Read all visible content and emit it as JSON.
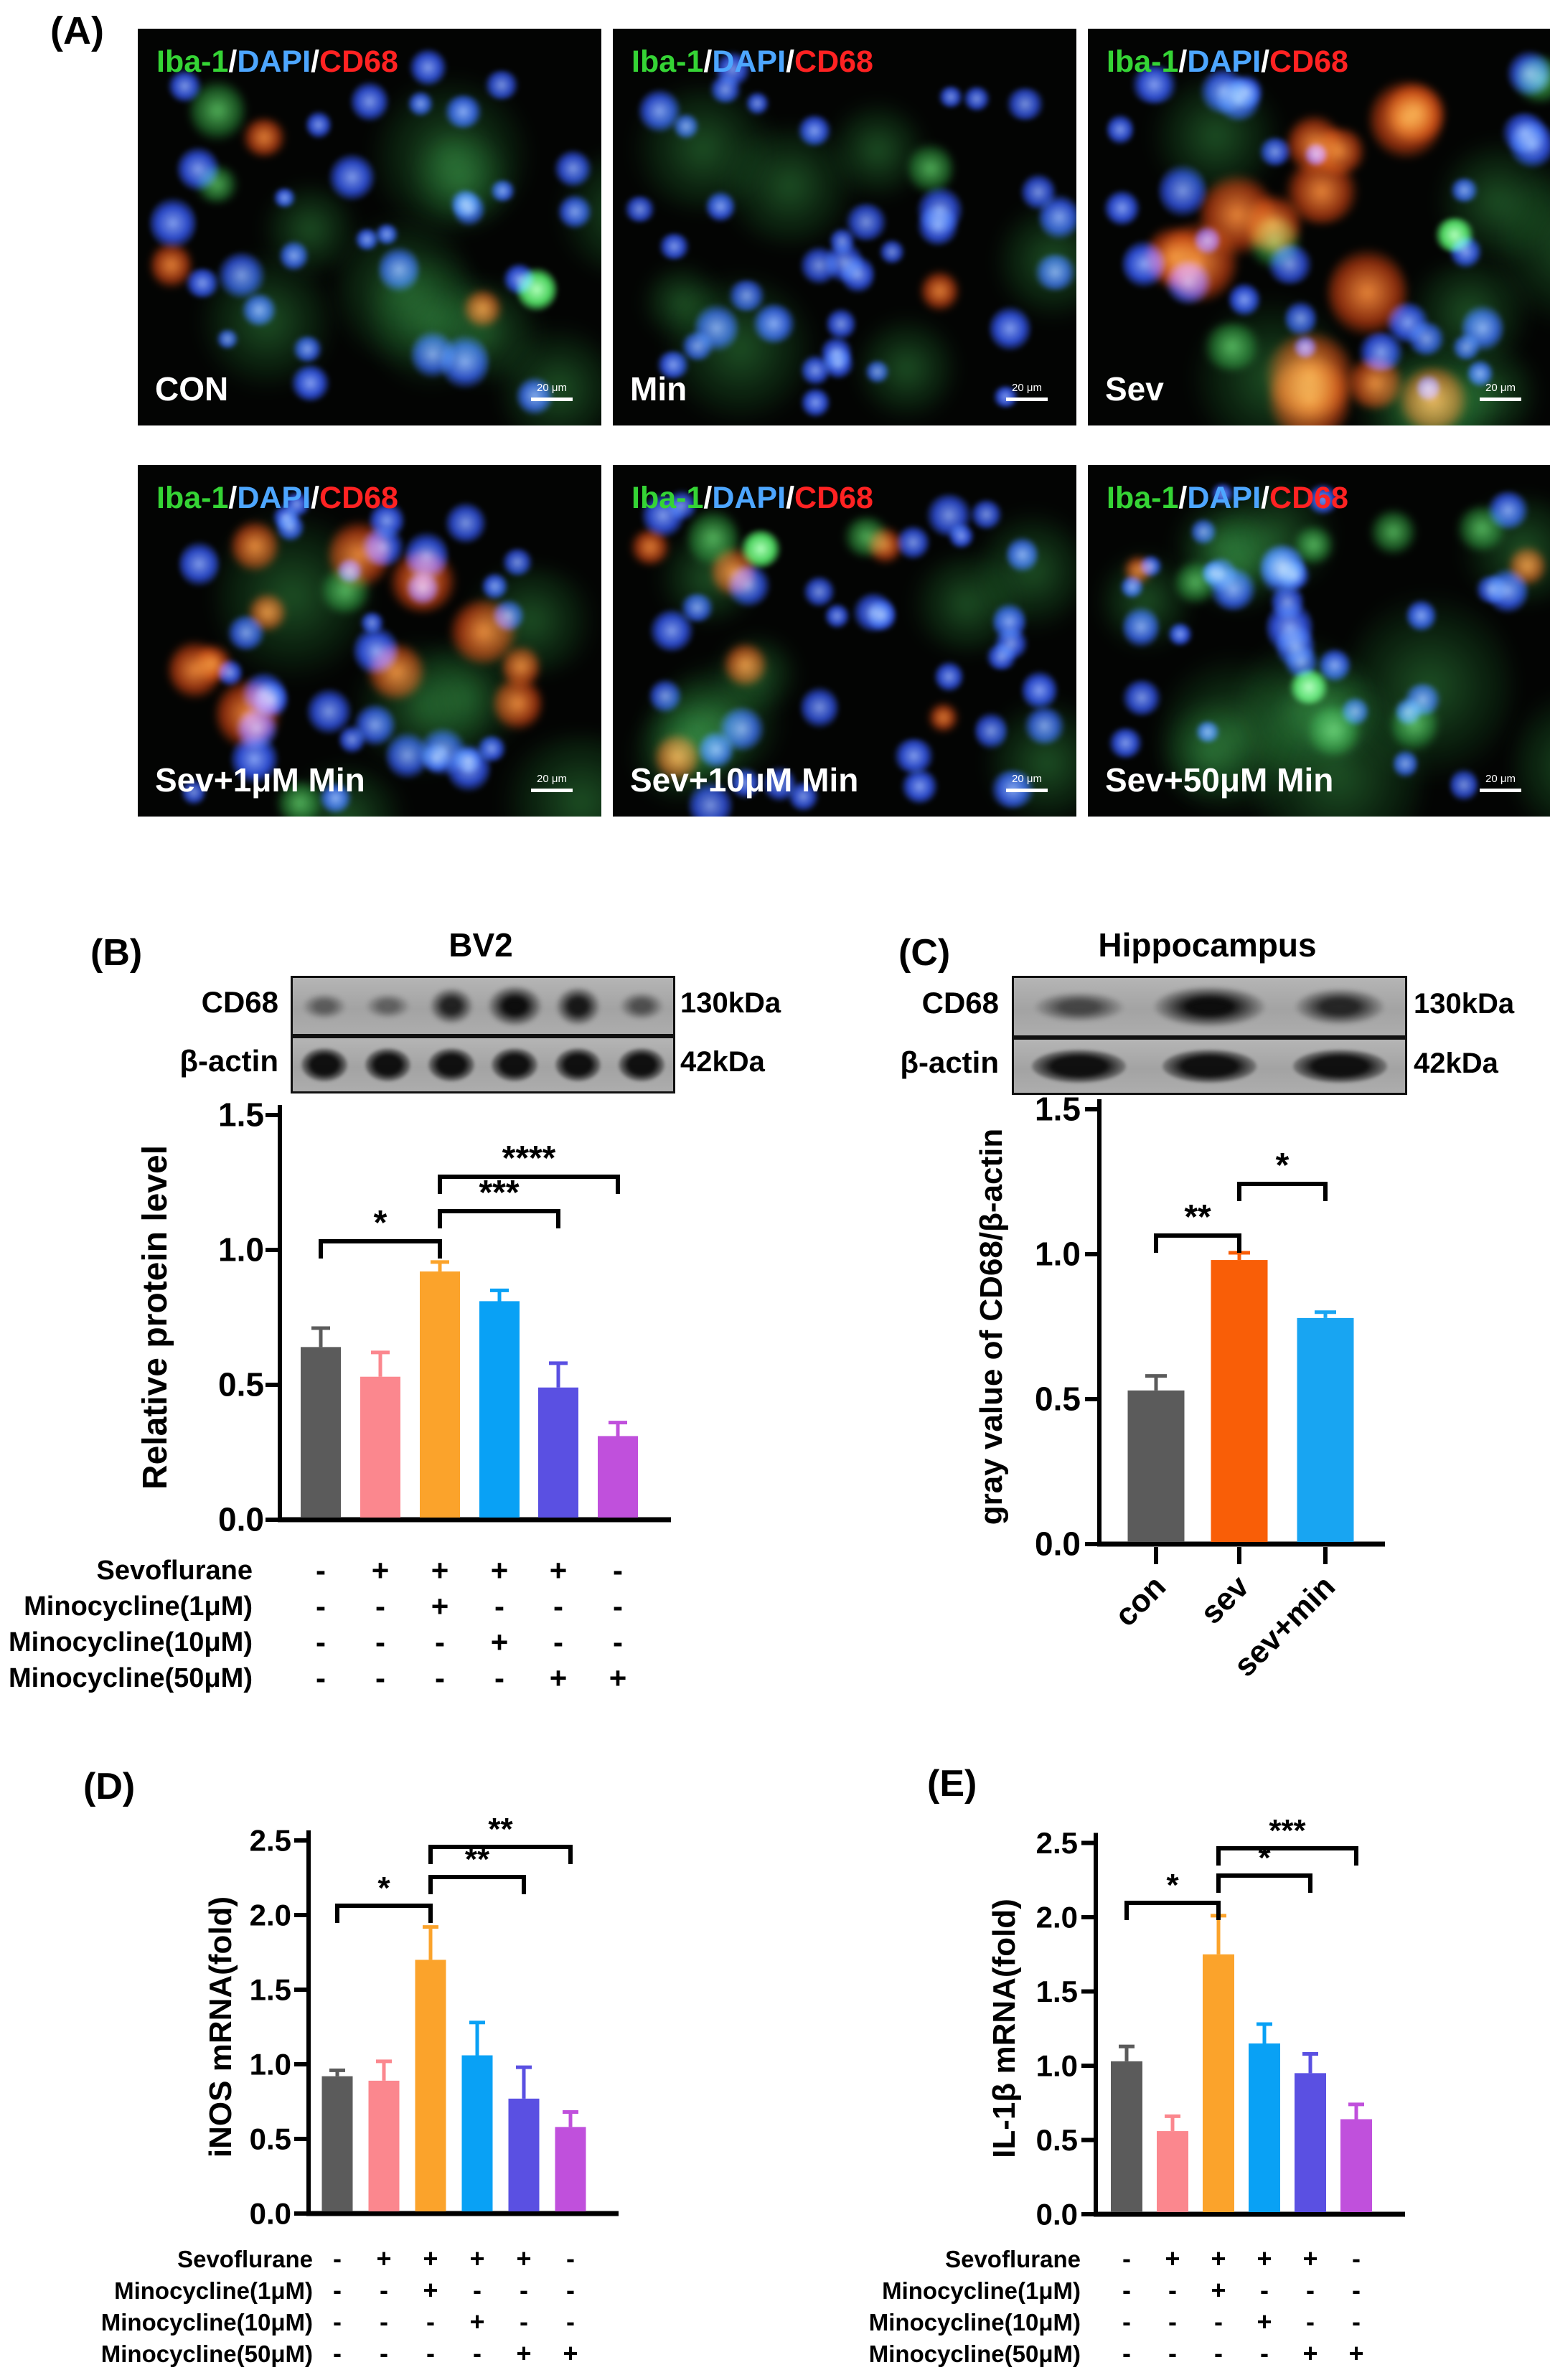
{
  "figure_labels": {
    "a": "(A)",
    "b": "(B)",
    "c": "(C)",
    "d": "(D)",
    "e": "(E)"
  },
  "panel_a": {
    "channel_legend": [
      {
        "text": "Iba-1",
        "color": "#35d435"
      },
      {
        "text": "/",
        "color": "#ffffff"
      },
      {
        "text": "DAPI",
        "color": "#4da6ff"
      },
      {
        "text": "/",
        "color": "#ffffff"
      },
      {
        "text": "CD68",
        "color": "#ff2222"
      }
    ],
    "scale_bar_label": "20 μm",
    "images": [
      {
        "label": "CON",
        "seed": 11,
        "nuclei": 30,
        "green_haze": 9,
        "green_cells": 2,
        "bright_green": 1,
        "red_cells": 3,
        "red_scale": 0.8
      },
      {
        "label": "Min",
        "seed": 22,
        "nuclei": 36,
        "green_haze": 7,
        "green_cells": 1,
        "bright_green": 0,
        "red_cells": 1,
        "red_scale": 0.6
      },
      {
        "label": "Sev",
        "seed": 33,
        "nuclei": 28,
        "green_haze": 8,
        "green_cells": 3,
        "bright_green": 1,
        "red_cells": 14,
        "red_scale": 1.5
      },
      {
        "label": "Sev+1μM Min",
        "seed": 44,
        "nuclei": 32,
        "green_haze": 6,
        "green_cells": 2,
        "bright_green": 0,
        "red_cells": 11,
        "red_scale": 1.1
      },
      {
        "label": "Sev+10μM Min",
        "seed": 55,
        "nuclei": 32,
        "green_haze": 8,
        "green_cells": 2,
        "bright_green": 1,
        "red_cells": 6,
        "red_scale": 0.7
      },
      {
        "label": "Sev+50μM Min",
        "seed": 66,
        "nuclei": 30,
        "green_haze": 12,
        "green_cells": 6,
        "bright_green": 1,
        "red_cells": 2,
        "red_scale": 0.6
      }
    ]
  },
  "panel_b": {
    "title": "BV2",
    "blot_rows": [
      {
        "label": "CD68",
        "kda": "130kDa",
        "bands": [
          0.3,
          0.26,
          0.82,
          1.0,
          0.9,
          0.42
        ]
      },
      {
        "label": "β-actin",
        "kda": "42kDa",
        "bands": [
          1.0,
          0.9,
          0.95,
          0.94,
          0.96,
          0.9
        ]
      }
    ]
  },
  "panel_c": {
    "title": "Hippocampus",
    "blot_rows": [
      {
        "label": "CD68",
        "kda": "130kDa",
        "bands": [
          0.5,
          1.0,
          0.78
        ]
      },
      {
        "label": "β-actin",
        "kda": "42kDa",
        "bands": [
          0.98,
          1.0,
          1.0
        ]
      }
    ]
  },
  "treatments": {
    "rows": [
      {
        "label": "Sevoflurane",
        "values": [
          "-",
          "+",
          "+",
          "+",
          "+",
          "-"
        ]
      },
      {
        "label": "Minocycline(1μM)",
        "values": [
          "-",
          "-",
          "+",
          "-",
          "-",
          "-"
        ]
      },
      {
        "label": "Minocycline(10μM)",
        "values": [
          "-",
          "-",
          "-",
          "+",
          "-",
          "-"
        ]
      },
      {
        "label": "Minocycline(50μM)",
        "values": [
          "-",
          "-",
          "-",
          "-",
          "+",
          "+"
        ]
      }
    ]
  },
  "chart_data": [
    {
      "id": "B",
      "type": "bar",
      "title": "BV2",
      "ylabel": "Relative protein level",
      "xlabel": "",
      "ylim": [
        0,
        1.5
      ],
      "yticks": [
        0,
        0.5,
        1,
        1.5
      ],
      "grid": false,
      "legend_position": "none",
      "categories": [
        "con",
        "sev",
        "sev+1uM min",
        "sev+10uM min",
        "sev+50uM min",
        "50uM min"
      ],
      "series": [
        {
          "name": "CD68 relative protein level",
          "values": [
            0.64,
            0.53,
            0.92,
            0.81,
            0.49,
            0.31
          ],
          "errors": [
            0.07,
            0.09,
            0.035,
            0.04,
            0.09,
            0.05
          ]
        }
      ],
      "bar_colors": [
        "#5b5b5b",
        "#fb878e",
        "#fba32b",
        "#09a1f5",
        "#5a50e2",
        "#c050dc"
      ],
      "significance": [
        {
          "from": 0,
          "to": 2,
          "label": "*"
        },
        {
          "from": 2,
          "to": 4,
          "label": "***"
        },
        {
          "from": 2,
          "to": 5,
          "label": "****"
        }
      ]
    },
    {
      "id": "C",
      "type": "bar",
      "title": "Hippocampus",
      "ylabel": "gray value of CD68/β-actin",
      "xlabel": "",
      "ylim": [
        0,
        1.5
      ],
      "yticks": [
        0,
        0.5,
        1,
        1.5
      ],
      "grid": false,
      "legend_position": "none",
      "categories": [
        "con",
        "sev",
        "sev+min"
      ],
      "series": [
        {
          "name": "gray value of CD68/β-actin",
          "values": [
            0.53,
            0.98,
            0.78
          ],
          "errors": [
            0.05,
            0.025,
            0.02
          ]
        }
      ],
      "bar_colors": [
        "#5b5b5b",
        "#f95e07",
        "#18a5f2"
      ],
      "significance": [
        {
          "from": 0,
          "to": 1,
          "label": "**"
        },
        {
          "from": 1,
          "to": 2,
          "label": "*"
        }
      ]
    },
    {
      "id": "D",
      "type": "bar",
      "title": "",
      "ylabel": "iNOS mRNA(fold)",
      "xlabel": "",
      "ylim": [
        0,
        2.5
      ],
      "yticks": [
        0,
        0.5,
        1,
        1.5,
        2,
        2.5
      ],
      "grid": false,
      "legend_position": "none",
      "categories": [
        "con",
        "sev",
        "sev+1uM min",
        "sev+10uM min",
        "sev+50uM min",
        "50uM min"
      ],
      "series": [
        {
          "name": "iNOS mRNA fold",
          "values": [
            0.92,
            0.89,
            1.7,
            1.06,
            0.77,
            0.58
          ],
          "errors": [
            0.04,
            0.13,
            0.22,
            0.22,
            0.21,
            0.1
          ]
        }
      ],
      "bar_colors": [
        "#5b5b5b",
        "#fb878e",
        "#fba32b",
        "#09a1f5",
        "#5a50e2",
        "#c050dc"
      ],
      "significance": [
        {
          "from": 0,
          "to": 2,
          "label": "*"
        },
        {
          "from": 2,
          "to": 4,
          "label": "**"
        },
        {
          "from": 2,
          "to": 5,
          "label": "**"
        }
      ]
    },
    {
      "id": "E",
      "type": "bar",
      "title": "",
      "ylabel": "IL-1β mRNA(fold)",
      "xlabel": "",
      "ylim": [
        0,
        2.5
      ],
      "yticks": [
        0,
        0.5,
        1,
        1.5,
        2,
        2.5
      ],
      "grid": false,
      "legend_position": "none",
      "categories": [
        "con",
        "sev",
        "sev+1uM min",
        "sev+10uM min",
        "sev+50uM min",
        "50uM min"
      ],
      "series": [
        {
          "name": "IL-1β mRNA fold",
          "values": [
            1.03,
            0.56,
            1.75,
            1.15,
            0.95,
            0.64
          ],
          "errors": [
            0.1,
            0.1,
            0.26,
            0.13,
            0.13,
            0.1
          ]
        }
      ],
      "bar_colors": [
        "#5b5b5b",
        "#fb878e",
        "#fba32b",
        "#09a1f5",
        "#5a50e2",
        "#c050dc"
      ],
      "significance": [
        {
          "from": 0,
          "to": 2,
          "label": "*"
        },
        {
          "from": 2,
          "to": 4,
          "label": "*"
        },
        {
          "from": 2,
          "to": 5,
          "label": "***"
        }
      ]
    }
  ]
}
